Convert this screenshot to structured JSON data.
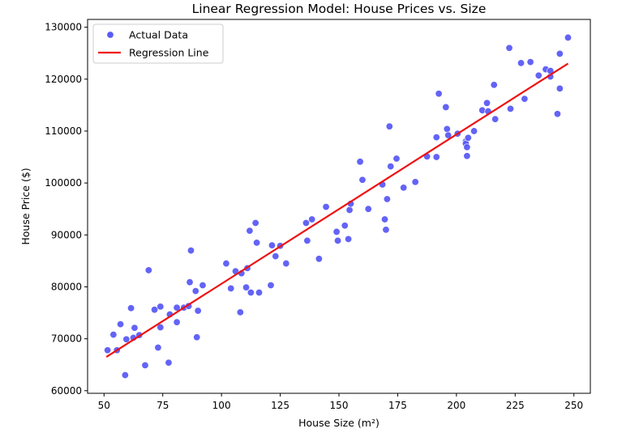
{
  "chart_data": {
    "type": "scatter",
    "title": "Linear Regression Model: House Prices vs. Size",
    "xlabel": "House Size (m²)",
    "ylabel": "House Price ($)",
    "xlim": [
      43,
      257
    ],
    "ylim": [
      59500,
      131500
    ],
    "xticks": [
      50,
      75,
      100,
      125,
      150,
      175,
      200,
      225,
      250
    ],
    "yticks": [
      60000,
      70000,
      80000,
      90000,
      100000,
      110000,
      120000,
      130000
    ],
    "xtick_labels": [
      "50",
      "75",
      "100",
      "125",
      "150",
      "175",
      "200",
      "225",
      "250"
    ],
    "ytick_labels": [
      "60000",
      "70000",
      "80000",
      "90000",
      "100000",
      "110000",
      "120000",
      "130000"
    ],
    "grid": false,
    "legend_position": "top-left",
    "series": [
      {
        "name": "Actual Data",
        "kind": "scatter",
        "color": "#5b5bf5",
        "points": [
          [
            51.5,
            67800
          ],
          [
            54,
            70800
          ],
          [
            55.5,
            67800
          ],
          [
            57,
            72800
          ],
          [
            59,
            63000
          ],
          [
            59.5,
            69900
          ],
          [
            61.5,
            75900
          ],
          [
            62.5,
            70200
          ],
          [
            63,
            72100
          ],
          [
            65,
            70700
          ],
          [
            67.5,
            64900
          ],
          [
            69,
            83200
          ],
          [
            71.5,
            75600
          ],
          [
            73,
            68300
          ],
          [
            74,
            76200
          ],
          [
            74,
            72200
          ],
          [
            77.5,
            65400
          ],
          [
            78,
            74700
          ],
          [
            81,
            76000
          ],
          [
            81,
            73200
          ],
          [
            84,
            76000
          ],
          [
            86,
            76300
          ],
          [
            86.5,
            80900
          ],
          [
            87,
            87000
          ],
          [
            89,
            79200
          ],
          [
            89.5,
            70300
          ],
          [
            90,
            75400
          ],
          [
            92,
            80300
          ],
          [
            102,
            84500
          ],
          [
            104,
            79700
          ],
          [
            106,
            83000
          ],
          [
            108,
            75100
          ],
          [
            108.5,
            82600
          ],
          [
            110.5,
            79900
          ],
          [
            111,
            83600
          ],
          [
            112,
            90800
          ],
          [
            112.5,
            78900
          ],
          [
            114.5,
            92300
          ],
          [
            115,
            88500
          ],
          [
            116,
            78900
          ],
          [
            121,
            80300
          ],
          [
            121.5,
            88000
          ],
          [
            123,
            85900
          ],
          [
            125,
            87900
          ],
          [
            127.5,
            84500
          ],
          [
            136,
            92300
          ],
          [
            136.5,
            88900
          ],
          [
            138.5,
            93000
          ],
          [
            141.5,
            85400
          ],
          [
            144.5,
            95400
          ],
          [
            149,
            90600
          ],
          [
            149.5,
            88900
          ],
          [
            152.5,
            91800
          ],
          [
            154,
            89200
          ],
          [
            154.5,
            94800
          ],
          [
            155,
            96000
          ],
          [
            159,
            104100
          ],
          [
            160,
            100600
          ],
          [
            162.5,
            95000
          ],
          [
            168.5,
            99700
          ],
          [
            169.5,
            93000
          ],
          [
            170,
            91000
          ],
          [
            170.5,
            96900
          ],
          [
            171.5,
            110900
          ],
          [
            172,
            103200
          ],
          [
            174.5,
            104700
          ],
          [
            177.5,
            99100
          ],
          [
            182.5,
            100200
          ],
          [
            187.5,
            105100
          ],
          [
            191.5,
            105000
          ],
          [
            191.5,
            108800
          ],
          [
            192.5,
            117200
          ],
          [
            195.5,
            114600
          ],
          [
            196,
            110400
          ],
          [
            196.5,
            109200
          ],
          [
            200.5,
            109500
          ],
          [
            204,
            108000
          ],
          [
            204,
            107600
          ],
          [
            204.5,
            106900
          ],
          [
            204.5,
            105200
          ],
          [
            205,
            108700
          ],
          [
            207.5,
            110000
          ],
          [
            211,
            114000
          ],
          [
            213,
            115400
          ],
          [
            213.5,
            113800
          ],
          [
            216,
            118900
          ],
          [
            216.5,
            112300
          ],
          [
            222.5,
            126000
          ],
          [
            223,
            114300
          ],
          [
            227.5,
            123100
          ],
          [
            229,
            116200
          ],
          [
            231.5,
            123300
          ],
          [
            235,
            120700
          ],
          [
            238,
            121900
          ],
          [
            240,
            120500
          ],
          [
            240,
            121600
          ],
          [
            243,
            113300
          ],
          [
            244,
            124900
          ],
          [
            244,
            118200
          ],
          [
            247.5,
            128000
          ]
        ]
      },
      {
        "name": "Regression Line",
        "kind": "line",
        "color": "#ee1111",
        "x": [
          51,
          247.5
        ],
        "y": [
          66500,
          123000
        ]
      }
    ]
  }
}
